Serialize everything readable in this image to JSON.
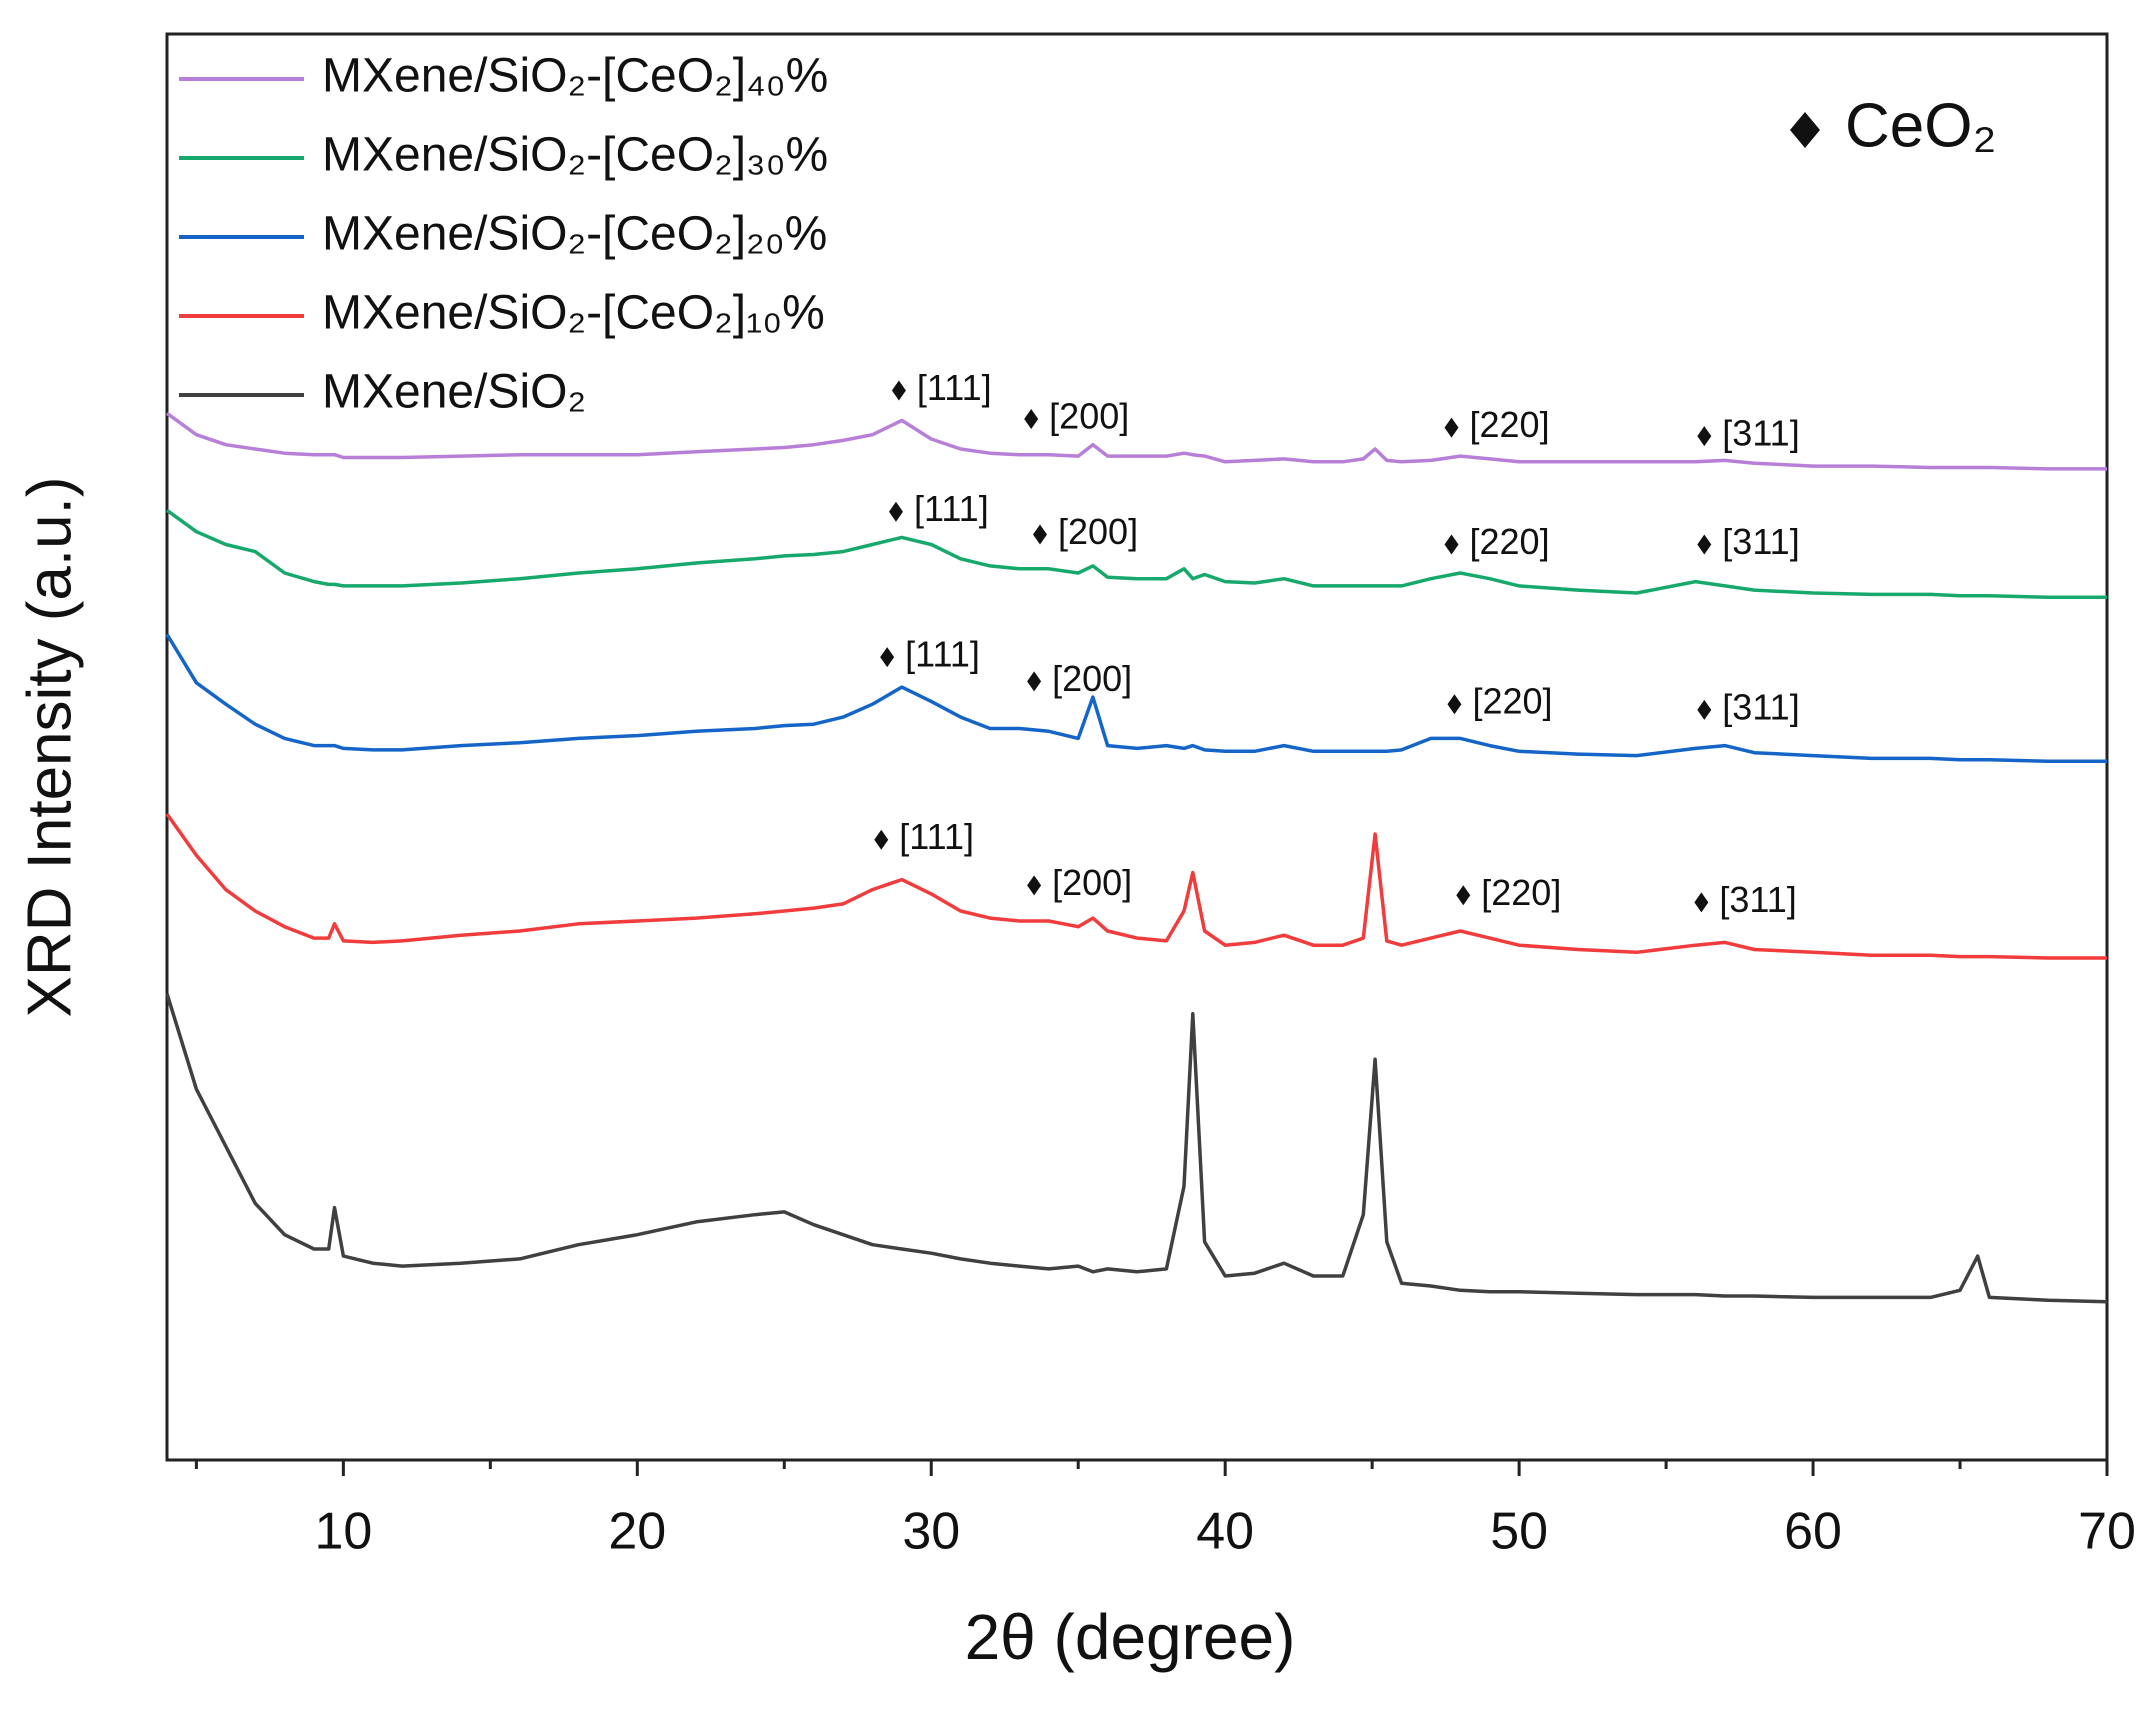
{
  "chart_data": {
    "type": "line",
    "xlabel": "2θ (degree)",
    "ylabel": "XRD Intensity (a.u.)",
    "xlim": [
      4,
      70
    ],
    "xticks": [
      10,
      20,
      30,
      40,
      50,
      60,
      70
    ],
    "xminorticks": [
      5,
      15,
      25,
      35,
      45,
      55,
      65
    ],
    "ylim": [
      0,
      100
    ],
    "marker_legend": "CeO₂",
    "x": [
      4,
      5,
      6,
      7,
      8,
      9,
      9.5,
      9.7,
      10,
      11,
      12,
      14,
      16,
      18,
      20,
      22,
      24,
      25,
      26,
      27,
      28,
      29,
      30,
      31,
      32,
      33,
      34,
      35,
      35.5,
      36,
      37,
      38,
      38.6,
      38.9,
      39.3,
      40,
      41,
      42,
      43,
      44,
      44.7,
      45.1,
      45.5,
      46,
      47,
      48,
      49,
      50,
      52,
      54,
      56,
      57,
      58,
      60,
      62,
      64,
      65,
      65.6,
      66,
      68,
      70
    ],
    "series": [
      {
        "name": "MXene/SiO₂-[CeO₂]₄₀%",
        "color": "#b77fd8",
        "values": [
          73.4,
          71.9,
          71.2,
          70.9,
          70.6,
          70.5,
          70.5,
          70.5,
          70.3,
          70.3,
          70.3,
          70.4,
          70.5,
          70.5,
          70.5,
          70.7,
          70.9,
          71.0,
          71.2,
          71.5,
          71.9,
          72.9,
          71.6,
          70.9,
          70.6,
          70.5,
          70.5,
          70.4,
          71.2,
          70.4,
          70.4,
          70.4,
          70.6,
          70.5,
          70.4,
          70.0,
          70.1,
          70.2,
          70.0,
          70.0,
          70.2,
          70.9,
          70.1,
          70.0,
          70.1,
          70.4,
          70.2,
          70.0,
          70.0,
          70.0,
          70.0,
          70.1,
          69.9,
          69.7,
          69.7,
          69.6,
          69.6,
          69.6,
          69.6,
          69.5,
          69.5
        ]
      },
      {
        "name": "MXene/SiO₂-[CeO₂]₃₀%",
        "color": "#17a96b",
        "values": [
          66.6,
          65.1,
          64.2,
          63.7,
          62.2,
          61.6,
          61.4,
          61.4,
          61.3,
          61.3,
          61.3,
          61.5,
          61.8,
          62.2,
          62.5,
          62.9,
          63.2,
          63.4,
          63.5,
          63.7,
          64.2,
          64.7,
          64.2,
          63.2,
          62.7,
          62.5,
          62.5,
          62.2,
          62.7,
          61.9,
          61.8,
          61.8,
          62.5,
          61.8,
          62.1,
          61.6,
          61.5,
          61.8,
          61.3,
          61.3,
          61.3,
          61.3,
          61.3,
          61.3,
          61.8,
          62.2,
          61.8,
          61.3,
          61.0,
          60.8,
          61.6,
          61.3,
          61.0,
          60.8,
          60.7,
          60.7,
          60.6,
          60.6,
          60.6,
          60.5,
          60.5
        ]
      },
      {
        "name": "MXene/SiO₂-[CeO₂]₂₀%",
        "color": "#1565c8",
        "values": [
          57.9,
          54.5,
          53.0,
          51.6,
          50.6,
          50.1,
          50.1,
          50.1,
          49.9,
          49.8,
          49.8,
          50.1,
          50.3,
          50.6,
          50.8,
          51.1,
          51.3,
          51.5,
          51.6,
          52.1,
          53.0,
          54.2,
          53.2,
          52.1,
          51.3,
          51.3,
          51.1,
          50.6,
          53.5,
          50.1,
          49.9,
          50.1,
          49.9,
          50.1,
          49.8,
          49.7,
          49.7,
          50.1,
          49.7,
          49.7,
          49.7,
          49.7,
          49.7,
          49.8,
          50.6,
          50.6,
          50.1,
          49.7,
          49.5,
          49.4,
          49.9,
          50.1,
          49.6,
          49.4,
          49.2,
          49.2,
          49.1,
          49.1,
          49.1,
          49.0,
          49.0
        ]
      },
      {
        "name": "MXene/SiO₂-[CeO₂]₁₀%",
        "color": "#f03c3c",
        "values": [
          45.3,
          42.4,
          40.0,
          38.5,
          37.4,
          36.6,
          36.6,
          37.6,
          36.4,
          36.3,
          36.4,
          36.8,
          37.1,
          37.6,
          37.8,
          38.0,
          38.3,
          38.5,
          38.7,
          39.0,
          40.0,
          40.7,
          39.7,
          38.5,
          38.0,
          37.8,
          37.8,
          37.4,
          38.0,
          37.1,
          36.6,
          36.4,
          38.5,
          41.2,
          37.1,
          36.1,
          36.3,
          36.8,
          36.1,
          36.1,
          36.6,
          43.9,
          36.4,
          36.1,
          36.6,
          37.1,
          36.6,
          36.1,
          35.8,
          35.6,
          36.1,
          36.3,
          35.8,
          35.6,
          35.4,
          35.4,
          35.3,
          35.3,
          35.3,
          35.2,
          35.2
        ]
      },
      {
        "name": "MXene/SiO₂",
        "color": "#404040",
        "values": [
          32.7,
          26.0,
          22.0,
          18.0,
          15.8,
          14.8,
          14.8,
          17.7,
          14.3,
          13.8,
          13.6,
          13.8,
          14.1,
          15.1,
          15.8,
          16.7,
          17.2,
          17.4,
          16.5,
          15.8,
          15.1,
          14.8,
          14.5,
          14.1,
          13.8,
          13.6,
          13.4,
          13.6,
          13.2,
          13.4,
          13.2,
          13.4,
          19.2,
          31.3,
          15.3,
          12.9,
          13.1,
          13.8,
          12.9,
          12.9,
          17.2,
          28.1,
          15.3,
          12.4,
          12.2,
          11.9,
          11.8,
          11.8,
          11.7,
          11.6,
          11.6,
          11.5,
          11.5,
          11.4,
          11.4,
          11.4,
          11.9,
          14.3,
          11.4,
          11.2,
          11.1
        ]
      }
    ],
    "annotations": [
      {
        "text": "[111]",
        "x": 28.9,
        "y": 75.0
      },
      {
        "text": "[200]",
        "x": 33.4,
        "y": 73.0
      },
      {
        "text": "[220]",
        "x": 47.7,
        "y": 72.4
      },
      {
        "text": "[311]",
        "x": 56.3,
        "y": 71.8
      },
      {
        "text": "[111]",
        "x": 28.8,
        "y": 66.5
      },
      {
        "text": "[200]",
        "x": 33.7,
        "y": 64.9
      },
      {
        "text": "[220]",
        "x": 47.7,
        "y": 64.2
      },
      {
        "text": "[311]",
        "x": 56.3,
        "y": 64.2
      },
      {
        "text": "[111]",
        "x": 28.5,
        "y": 56.3
      },
      {
        "text": "[200]",
        "x": 33.5,
        "y": 54.6
      },
      {
        "text": "[220]",
        "x": 47.8,
        "y": 53.0
      },
      {
        "text": "[311]",
        "x": 56.3,
        "y": 52.6
      },
      {
        "text": "[111]",
        "x": 28.3,
        "y": 43.5
      },
      {
        "text": "[200]",
        "x": 33.5,
        "y": 40.3
      },
      {
        "text": "[220]",
        "x": 48.1,
        "y": 39.6
      },
      {
        "text": "[311]",
        "x": 56.2,
        "y": 39.1
      }
    ]
  }
}
